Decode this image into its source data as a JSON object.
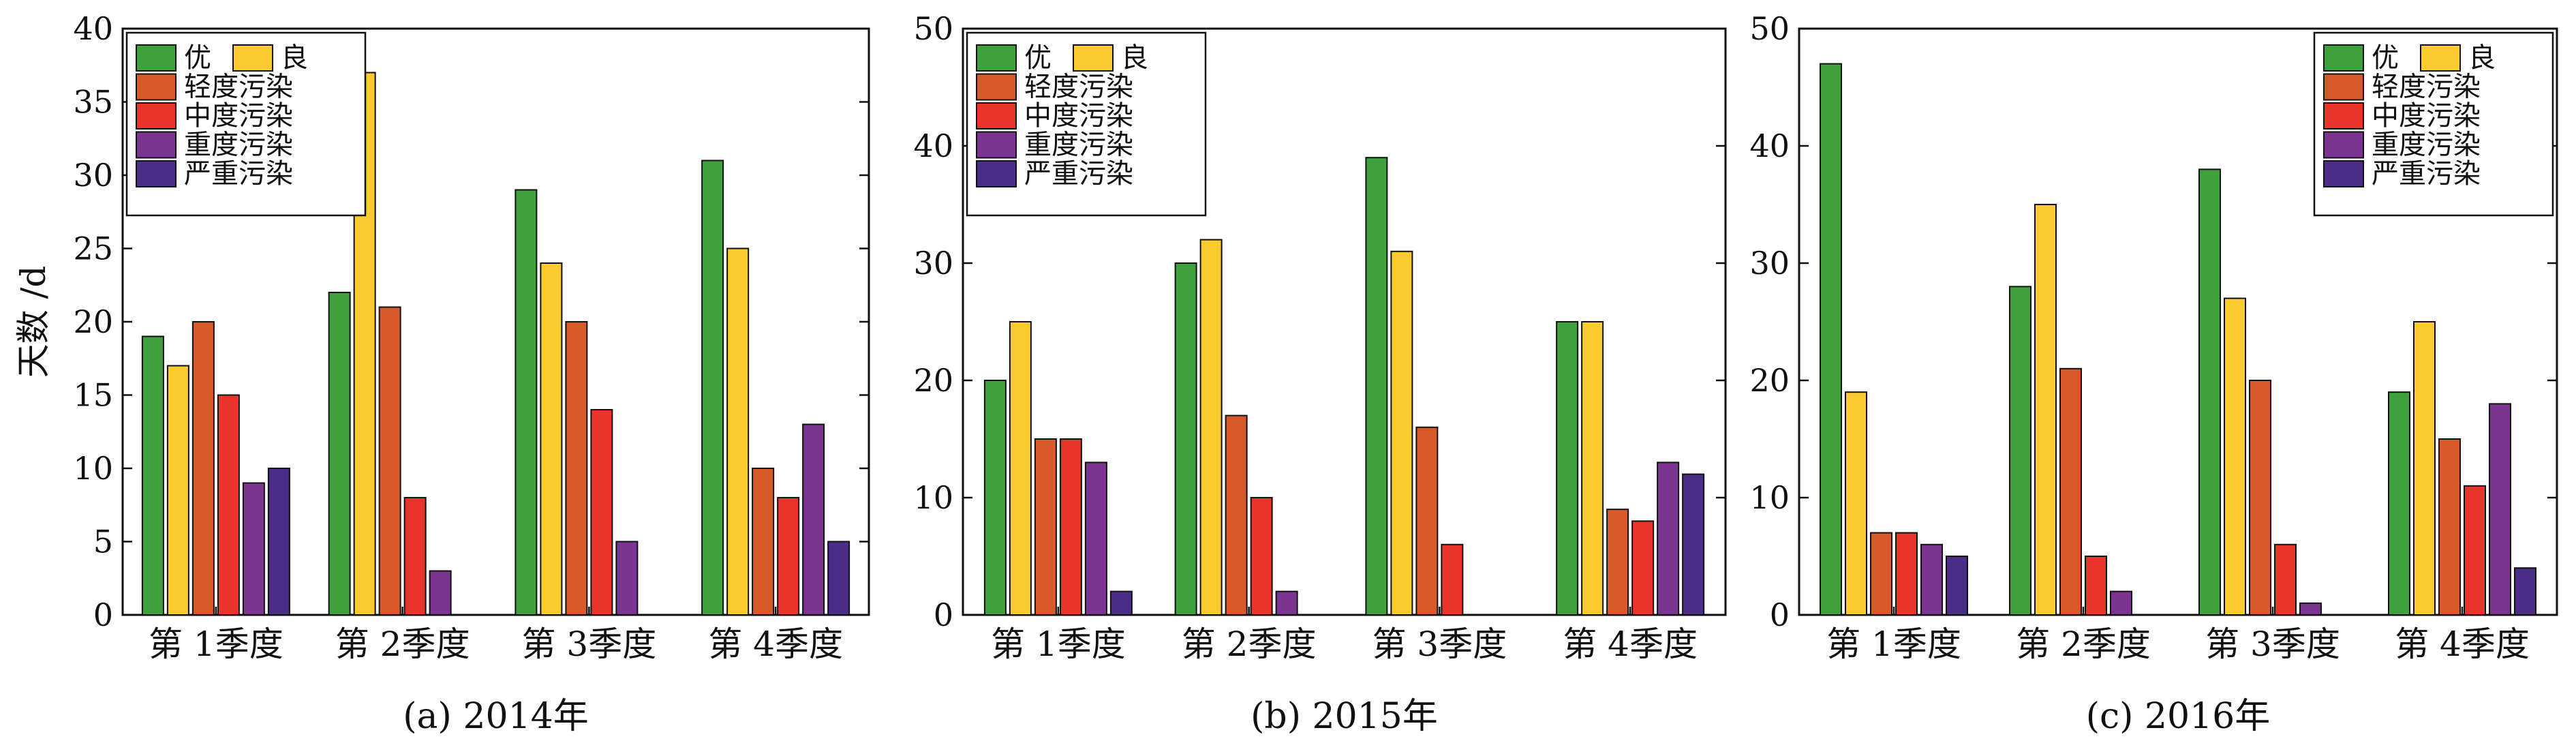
{
  "figure": {
    "ylabel": "天数 /d"
  },
  "colors": {
    "优": "#3fa13d",
    "良": "#f9cb2e",
    "轻度污染": "#d65a2a",
    "中度污染": "#e8352b",
    "重度污染": "#7b3590",
    "严重污染": "#4a2d86"
  },
  "chart_data": [
    {
      "type": "bar",
      "caption": "(a) 2014年",
      "categories": [
        "第 1季度",
        "第 2季度",
        "第 3季度",
        "第 4季度"
      ],
      "ylim": [
        0,
        40
      ],
      "yticks": [
        0,
        5,
        10,
        15,
        20,
        25,
        30,
        35,
        40
      ],
      "ytick_labels": [
        "0",
        "5",
        "10",
        "15",
        "20",
        "25",
        "30",
        "35",
        "40"
      ],
      "ylabel": "天数 /d",
      "legend_position": "top-left",
      "grid": false,
      "series": [
        {
          "name": "优",
          "values": [
            19,
            22,
            29,
            31
          ]
        },
        {
          "name": "良",
          "values": [
            17,
            37,
            24,
            25
          ]
        },
        {
          "name": "轻度污染",
          "values": [
            20,
            21,
            20,
            10
          ]
        },
        {
          "name": "中度污染",
          "values": [
            15,
            8,
            14,
            8
          ]
        },
        {
          "name": "重度污染",
          "values": [
            9,
            3,
            5,
            13
          ]
        },
        {
          "name": "严重污染",
          "values": [
            10,
            0,
            0,
            5
          ]
        }
      ]
    },
    {
      "type": "bar",
      "caption": "(b) 2015年",
      "categories": [
        "第 1季度",
        "第 2季度",
        "第 3季度",
        "第 4季度"
      ],
      "ylim": [
        0,
        50
      ],
      "yticks": [
        0,
        10,
        20,
        30,
        40,
        50
      ],
      "ytick_labels": [
        "0",
        "10",
        "20",
        "30",
        "40",
        "50"
      ],
      "legend_position": "top-left",
      "grid": false,
      "series": [
        {
          "name": "优",
          "values": [
            20,
            30,
            39,
            25
          ]
        },
        {
          "name": "良",
          "values": [
            25,
            32,
            31,
            25
          ]
        },
        {
          "name": "轻度污染",
          "values": [
            15,
            17,
            16,
            9
          ]
        },
        {
          "name": "中度污染",
          "values": [
            15,
            10,
            6,
            8
          ]
        },
        {
          "name": "重度污染",
          "values": [
            13,
            2,
            0,
            13
          ]
        },
        {
          "name": "严重污染",
          "values": [
            2,
            0,
            0,
            12
          ]
        }
      ]
    },
    {
      "type": "bar",
      "caption": "(c) 2016年",
      "categories": [
        "第 1季度",
        "第 2季度",
        "第 3季度",
        "第 4季度"
      ],
      "ylim": [
        0,
        50
      ],
      "yticks": [
        0,
        10,
        20,
        30,
        40,
        50
      ],
      "ytick_labels": [
        "0",
        "10",
        "20",
        "30",
        "40",
        "50"
      ],
      "legend_position": "top-right",
      "grid": false,
      "series": [
        {
          "name": "优",
          "values": [
            47,
            28,
            38,
            19
          ]
        },
        {
          "name": "良",
          "values": [
            19,
            35,
            27,
            25
          ]
        },
        {
          "name": "轻度污染",
          "values": [
            7,
            21,
            20,
            15
          ]
        },
        {
          "name": "中度污染",
          "values": [
            7,
            5,
            6,
            11
          ]
        },
        {
          "name": "重度污染",
          "values": [
            6,
            2,
            1,
            18
          ]
        },
        {
          "name": "严重污染",
          "values": [
            5,
            0,
            0,
            4
          ]
        }
      ]
    }
  ]
}
